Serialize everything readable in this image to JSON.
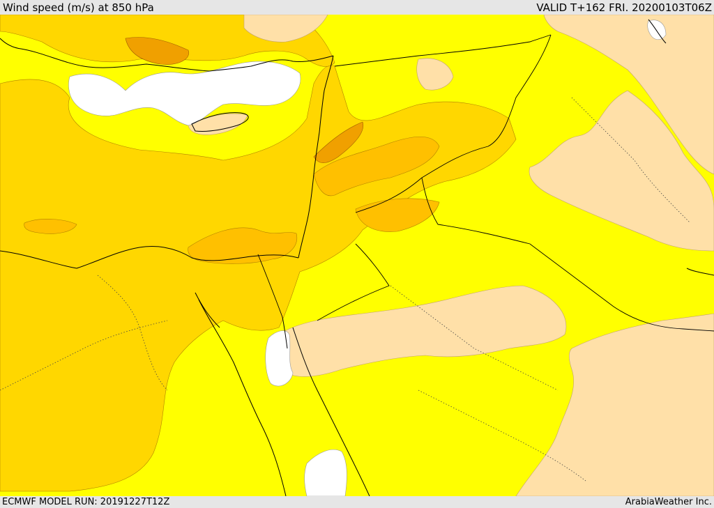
{
  "header": {
    "title": "Wind speed (m/s) at 850 hPa",
    "valid_time": "VALID T+162 FRI. 20200103T06Z"
  },
  "footer": {
    "model_run": "ECMWF MODEL RUN: 20191227T12Z",
    "credit": "ArabiaWeather Inc."
  },
  "map": {
    "field": "wind speed at 850 hPa",
    "colors": {
      "calm": "#ffffff",
      "low": "#ffe0a8",
      "base": "#ffff00",
      "moderate": "#ffd700",
      "strong": "#ffc000",
      "stronger": "#f0a000",
      "coastline": "#000000",
      "border": "#000000"
    }
  }
}
